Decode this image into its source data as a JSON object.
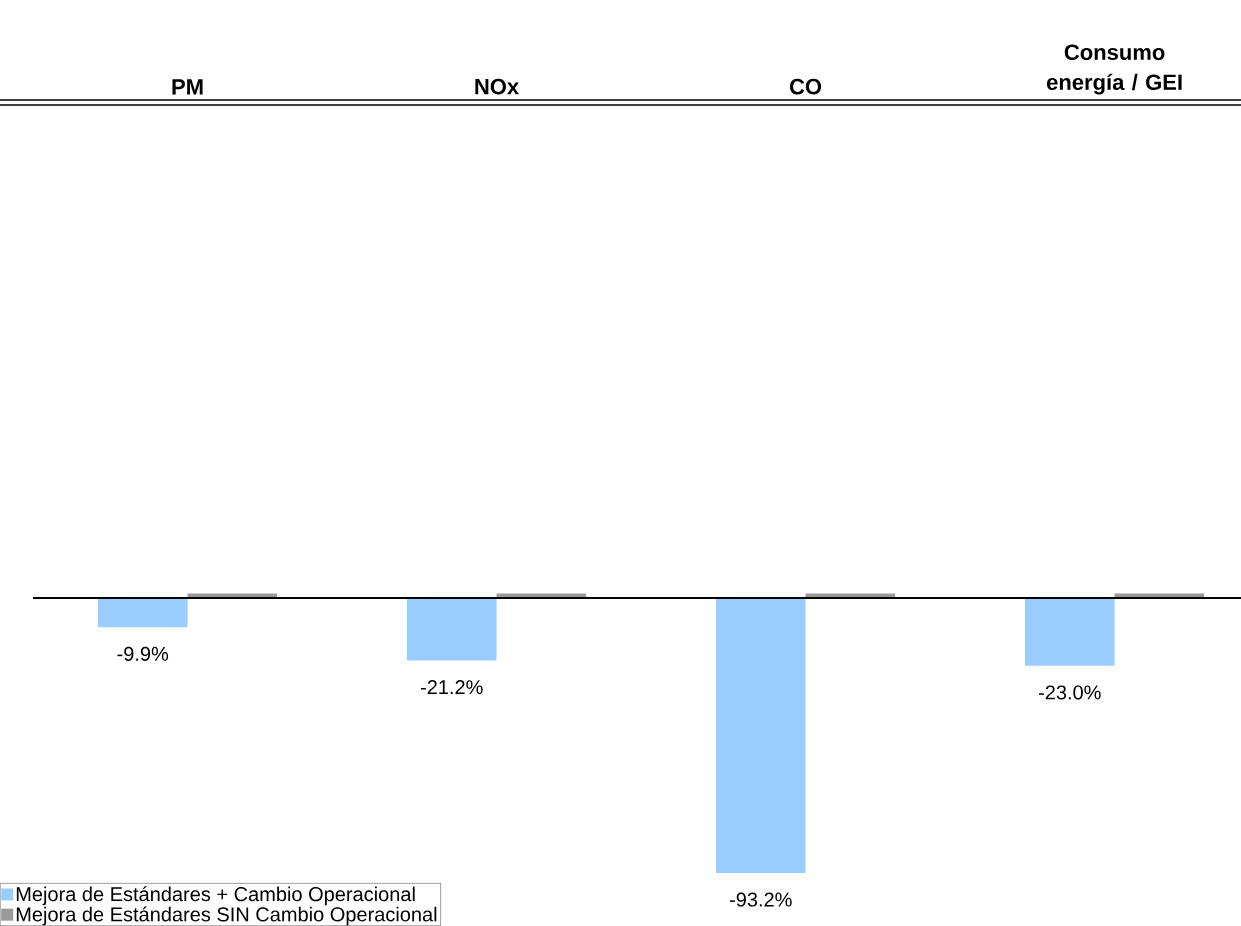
{
  "chart_data": {
    "type": "bar",
    "categories": [
      "PM",
      "NOx",
      "CO",
      "Consumo energía / GEI"
    ],
    "series": [
      {
        "name": "Mejora de Estándares + Cambio Operacional",
        "color": "#99ccff",
        "values": [
          -9.9,
          -21.2,
          -93.2,
          -23.0
        ],
        "value_labels": [
          "-9.9%",
          "-21.2%",
          "-93.2%",
          "-23.0%"
        ]
      },
      {
        "name": "Mejora de Estándares SIN Cambio Operacional",
        "color": "#999999",
        "values": [
          1.5,
          1.5,
          1.5,
          1.5
        ]
      }
    ],
    "legend": "bottom left",
    "tick_labels": "x"
  }
}
